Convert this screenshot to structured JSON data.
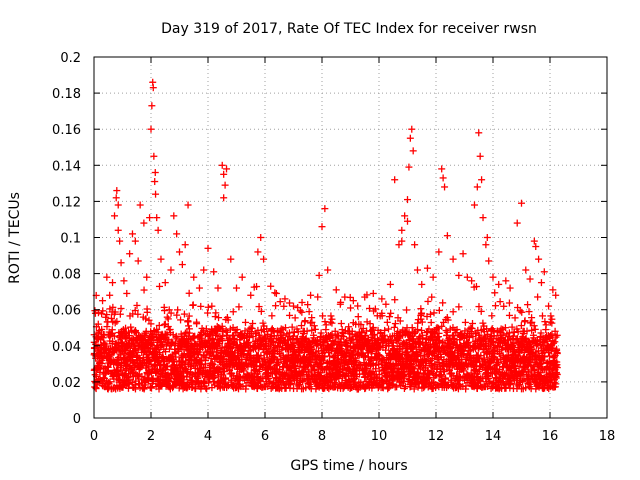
{
  "chart_data": {
    "type": "scatter",
    "title": "Day 319 of 2017, Rate Of TEC Index for receiver rwsn",
    "xlabel": "GPS time / hours",
    "ylabel": "ROTI / TECUs",
    "xlim": [
      0,
      18
    ],
    "ylim": [
      0,
      0.2
    ],
    "x_ticks": [
      "0",
      "2",
      "4",
      "6",
      "8",
      "10",
      "12",
      "14",
      "16",
      "18"
    ],
    "y_ticks": [
      "0",
      "0.02",
      "0.04",
      "0.06",
      "0.08",
      "0.1",
      "0.12",
      "0.14",
      "0.16",
      "0.18",
      "0.2"
    ],
    "grid": true,
    "marker": "+",
    "marker_color": "#ff0000",
    "baseline": {
      "x_start": 0.0,
      "x_end": 16.25,
      "typical_min": 0.01,
      "typical_max": 0.05
    },
    "points": [
      [
        0.05,
        0.058
      ],
      [
        0.15,
        0.052
      ],
      [
        0.3,
        0.065
      ],
      [
        0.45,
        0.078
      ],
      [
        0.55,
        0.068
      ],
      [
        0.65,
        0.075
      ],
      [
        0.72,
        0.112
      ],
      [
        0.78,
        0.122
      ],
      [
        0.8,
        0.126
      ],
      [
        0.85,
        0.118
      ],
      [
        0.9,
        0.098
      ],
      [
        0.95,
        0.086
      ],
      [
        1.05,
        0.076
      ],
      [
        1.15,
        0.069
      ],
      [
        1.25,
        0.091
      ],
      [
        1.35,
        0.102
      ],
      [
        1.45,
        0.098
      ],
      [
        1.55,
        0.087
      ],
      [
        1.62,
        0.118
      ],
      [
        1.75,
        0.108
      ],
      [
        1.85,
        0.078
      ],
      [
        1.95,
        0.111
      ],
      [
        2.0,
        0.16
      ],
      [
        2.03,
        0.173
      ],
      [
        2.06,
        0.186
      ],
      [
        2.08,
        0.183
      ],
      [
        2.1,
        0.145
      ],
      [
        2.13,
        0.131
      ],
      [
        2.16,
        0.124
      ],
      [
        2.2,
        0.111
      ],
      [
        2.25,
        0.104
      ],
      [
        2.35,
        0.088
      ],
      [
        2.5,
        0.075
      ],
      [
        2.7,
        0.082
      ],
      [
        2.8,
        0.112
      ],
      [
        2.9,
        0.102
      ],
      [
        3.0,
        0.092
      ],
      [
        3.1,
        0.085
      ],
      [
        3.2,
        0.096
      ],
      [
        3.3,
        0.118
      ],
      [
        3.5,
        0.078
      ],
      [
        3.7,
        0.072
      ],
      [
        3.85,
        0.082
      ],
      [
        4.0,
        0.094
      ],
      [
        4.2,
        0.081
      ],
      [
        4.35,
        0.072
      ],
      [
        4.5,
        0.14
      ],
      [
        4.55,
        0.135
      ],
      [
        4.6,
        0.129
      ],
      [
        4.65,
        0.138
      ],
      [
        4.8,
        0.088
      ],
      [
        5.0,
        0.072
      ],
      [
        5.2,
        0.078
      ],
      [
        5.5,
        0.068
      ],
      [
        5.75,
        0.092
      ],
      [
        5.85,
        0.1
      ],
      [
        5.95,
        0.088
      ],
      [
        6.2,
        0.073
      ],
      [
        6.4,
        0.069
      ],
      [
        6.7,
        0.066
      ],
      [
        7.0,
        0.062
      ],
      [
        7.3,
        0.064
      ],
      [
        7.6,
        0.068
      ],
      [
        7.9,
        0.079
      ],
      [
        8.0,
        0.106
      ],
      [
        8.1,
        0.116
      ],
      [
        8.2,
        0.082
      ],
      [
        8.5,
        0.071
      ],
      [
        8.8,
        0.067
      ],
      [
        9.1,
        0.065
      ],
      [
        9.5,
        0.067
      ],
      [
        9.8,
        0.069
      ],
      [
        10.1,
        0.066
      ],
      [
        10.4,
        0.074
      ],
      [
        10.55,
        0.132
      ],
      [
        10.7,
        0.096
      ],
      [
        10.8,
        0.104
      ],
      [
        10.9,
        0.112
      ],
      [
        11.0,
        0.121
      ],
      [
        11.05,
        0.139
      ],
      [
        11.1,
        0.155
      ],
      [
        11.15,
        0.16
      ],
      [
        11.2,
        0.148
      ],
      [
        11.25,
        0.096
      ],
      [
        11.35,
        0.082
      ],
      [
        11.5,
        0.074
      ],
      [
        11.7,
        0.083
      ],
      [
        11.9,
        0.078
      ],
      [
        12.1,
        0.092
      ],
      [
        12.2,
        0.138
      ],
      [
        12.25,
        0.133
      ],
      [
        12.3,
        0.128
      ],
      [
        12.4,
        0.101
      ],
      [
        12.6,
        0.088
      ],
      [
        12.8,
        0.079
      ],
      [
        12.95,
        0.091
      ],
      [
        13.1,
        0.078
      ],
      [
        13.25,
        0.076
      ],
      [
        13.35,
        0.118
      ],
      [
        13.45,
        0.128
      ],
      [
        13.5,
        0.158
      ],
      [
        13.55,
        0.145
      ],
      [
        13.6,
        0.132
      ],
      [
        13.65,
        0.111
      ],
      [
        13.75,
        0.096
      ],
      [
        13.85,
        0.087
      ],
      [
        14.0,
        0.078
      ],
      [
        14.2,
        0.074
      ],
      [
        14.45,
        0.076
      ],
      [
        14.6,
        0.072
      ],
      [
        14.85,
        0.108
      ],
      [
        15.0,
        0.119
      ],
      [
        15.15,
        0.082
      ],
      [
        15.3,
        0.077
      ],
      [
        15.45,
        0.098
      ],
      [
        15.5,
        0.095
      ],
      [
        15.6,
        0.088
      ],
      [
        15.7,
        0.075
      ],
      [
        15.8,
        0.081
      ],
      [
        15.95,
        0.062
      ],
      [
        16.1,
        0.071
      ],
      [
        16.2,
        0.068
      ],
      [
        11.0,
        0.109
      ],
      [
        13.8,
        0.1
      ],
      [
        2.15,
        0.136
      ],
      [
        4.55,
        0.122
      ],
      [
        0.85,
        0.104
      ],
      [
        10.8,
        0.098
      ]
    ]
  }
}
